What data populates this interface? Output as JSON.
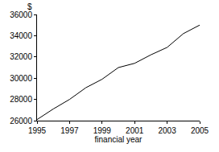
{
  "chart_data": {
    "type": "line",
    "xlabel": "financial year",
    "ylabel": "$",
    "x": [
      1995,
      1996,
      1997,
      1998,
      1999,
      2000,
      2001,
      2002,
      2003,
      2004,
      2005
    ],
    "values": [
      26100,
      27100,
      28000,
      29100,
      29900,
      31000,
      31400,
      32200,
      32900,
      34200,
      35000
    ],
    "color": "#000000",
    "xlim": [
      1995,
      2005
    ],
    "xticks": [
      1995,
      1997,
      1999,
      2001,
      2003,
      2005
    ],
    "ylim": [
      26000,
      36000
    ],
    "yticks": [
      26000,
      28000,
      30000,
      32000,
      34000,
      36000
    ],
    "grid": false
  }
}
